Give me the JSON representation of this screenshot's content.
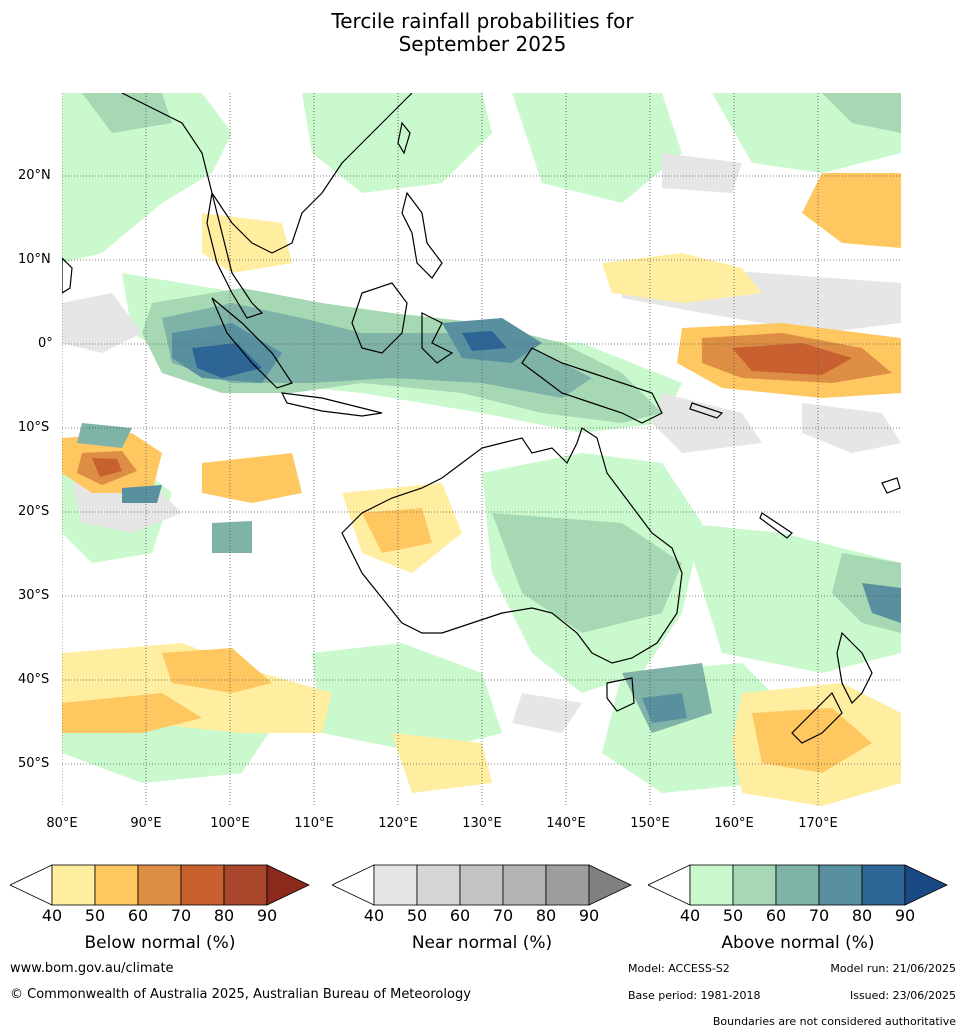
{
  "title_line1": "Tercile rainfall probabilities for",
  "title_line2": "September 2025",
  "lat_labels": [
    "20°N",
    "10°N",
    "0°",
    "10°S",
    "20°S",
    "30°S",
    "40°S",
    "50°S"
  ],
  "lon_labels": [
    "80°E",
    "90°E",
    "100°E",
    "110°E",
    "120°E",
    "130°E",
    "140°E",
    "150°E",
    "160°E",
    "170°E"
  ],
  "legends": [
    {
      "title": "Below normal (%)",
      "ticks": [
        "40",
        "50",
        "60",
        "70",
        "80",
        "90"
      ],
      "colors": [
        "#ffffff",
        "#ffeda0",
        "#fec760",
        "#de8d45",
        "#c8602f",
        "#a7462a",
        "#8b2a1c"
      ]
    },
    {
      "title": "Near normal (%)",
      "ticks": [
        "40",
        "50",
        "60",
        "70",
        "80",
        "90"
      ],
      "colors": [
        "#ffffff",
        "#e6e6e6",
        "#d6d6d6",
        "#c4c4c4",
        "#b3b3b3",
        "#9e9e9e",
        "#808080"
      ]
    },
    {
      "title": "Above normal (%)",
      "ticks": [
        "40",
        "50",
        "60",
        "70",
        "80",
        "90"
      ],
      "colors": [
        "#ffffff",
        "#c9f9cc",
        "#a6d8b4",
        "#7fb3a8",
        "#5890a0",
        "#2e6597",
        "#1a4a85"
      ]
    }
  ],
  "footer": {
    "website": "www.bom.gov.au/climate",
    "copyright": "© Commonwealth of Australia 2025, Australian Bureau of Meteorology",
    "model": "Model: ACCESS-S2",
    "model_run": "Model run: 21/06/2025",
    "base_period": "Base period: 1981-2018",
    "issued": "Issued: 23/06/2025",
    "boundaries": "Boundaries are not considered authoritative"
  }
}
